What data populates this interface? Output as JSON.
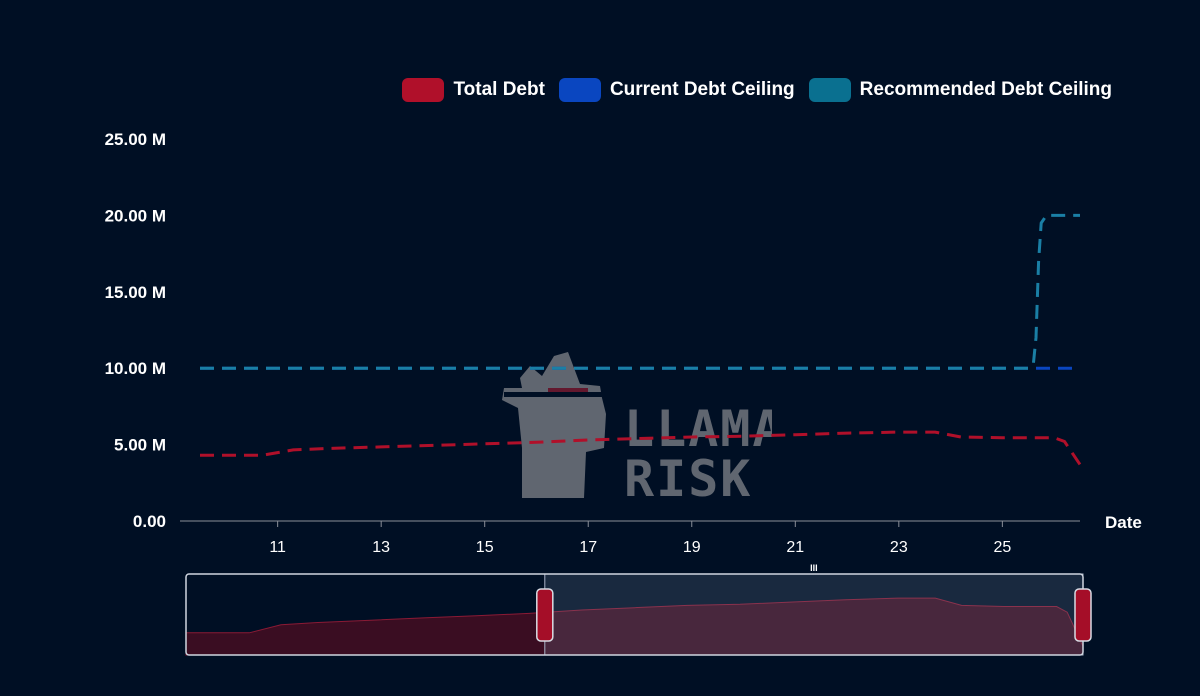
{
  "colors": {
    "background": "#000f24",
    "total_debt": "#b0102a",
    "current_ceiling": "#0a46c0",
    "recommended_ceiling": "#1a7fa5",
    "legend_recommended": "#0a7090"
  },
  "watermark": {
    "text_line1": "LLAMA",
    "text_line2": "RISK"
  },
  "chart_data": {
    "type": "line",
    "xlabel": "Date",
    "ylabel": "",
    "xlim": [
      9.5,
      26.5
    ],
    "ylim": [
      0,
      25
    ],
    "x_ticks": [
      "11",
      "13",
      "15",
      "17",
      "19",
      "21",
      "23",
      "25"
    ],
    "y_ticks": [
      "0.00",
      "5.00 M",
      "10.00 M",
      "15.00 M",
      "20.00 M",
      "25.00 M"
    ],
    "legend_position": "top-right",
    "grid": false,
    "series": [
      {
        "name": "Total Debt",
        "style": "dashed",
        "points": [
          [
            9.5,
            4.3
          ],
          [
            10.7,
            4.3
          ],
          [
            11.3,
            4.65
          ],
          [
            12,
            4.75
          ],
          [
            13,
            4.85
          ],
          [
            14,
            4.95
          ],
          [
            15,
            5.05
          ],
          [
            16,
            5.15
          ],
          [
            17,
            5.3
          ],
          [
            18,
            5.4
          ],
          [
            19,
            5.5
          ],
          [
            20,
            5.55
          ],
          [
            21,
            5.65
          ],
          [
            22,
            5.75
          ],
          [
            23,
            5.82
          ],
          [
            23.7,
            5.82
          ],
          [
            24.2,
            5.5
          ],
          [
            25,
            5.45
          ],
          [
            26,
            5.45
          ],
          [
            26.2,
            5.2
          ],
          [
            26.5,
            3.7
          ]
        ]
      },
      {
        "name": "Current Debt Ceiling",
        "style": "dashed",
        "points": [
          [
            9.5,
            10
          ],
          [
            26.5,
            10
          ]
        ]
      },
      {
        "name": "Recommended Debt Ceiling",
        "style": "dashed",
        "points": [
          [
            9.5,
            10
          ],
          [
            25.5,
            10
          ],
          [
            25.6,
            10.3
          ],
          [
            25.65,
            12
          ],
          [
            25.7,
            17
          ],
          [
            25.75,
            19.5
          ],
          [
            25.85,
            20
          ],
          [
            26.5,
            20
          ]
        ]
      }
    ],
    "zoom_slider": {
      "start": 0.4,
      "end": 1.0,
      "handle_label": "III"
    }
  }
}
